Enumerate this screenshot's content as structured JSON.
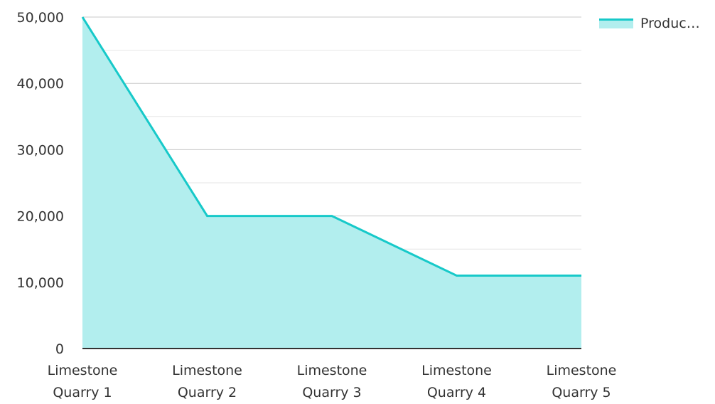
{
  "chart_data": {
    "type": "area",
    "categories": [
      "Limestone Quarry 1",
      "Limestone Quarry 2",
      "Limestone Quarry 3",
      "Limestone Quarry 4",
      "Limestone Quarry 5"
    ],
    "category_lines": [
      [
        "Limestone",
        "Quarry 1"
      ],
      [
        "Limestone",
        "Quarry 2"
      ],
      [
        "Limestone",
        "Quarry 3"
      ],
      [
        "Limestone",
        "Quarry 4"
      ],
      [
        "Limestone",
        "Quarry 5"
      ]
    ],
    "series": [
      {
        "name": "Produc…",
        "values": [
          50000,
          20000,
          20000,
          11000,
          11000
        ]
      }
    ],
    "ylim": [
      0,
      50000
    ],
    "yticks": [
      0,
      10000,
      20000,
      30000,
      40000,
      50000
    ],
    "ytick_labels": [
      "0",
      "10,000",
      "20,000",
      "30,000",
      "40,000",
      "50,000"
    ],
    "grid": true,
    "legend_position": "top-right",
    "colors": {
      "line": "#17C9C9",
      "fill": "#B2EEEE",
      "grid_major": "#C8C8C8",
      "grid_minor": "#E6E6E6",
      "axis": "#333333",
      "text": "#333333"
    }
  }
}
